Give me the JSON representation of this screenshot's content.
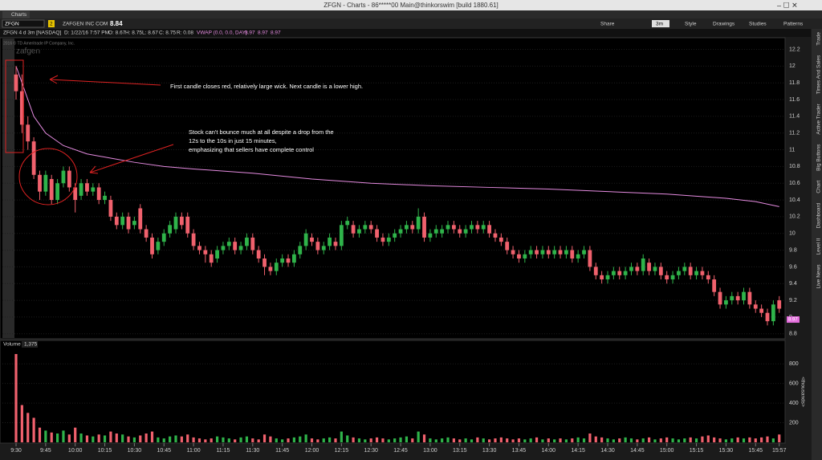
{
  "window_title": "ZFGN - Charts - 86*****00 Main@thinkorswim [build 1880.61]",
  "tab": "Charts",
  "toolbar": {
    "symbol": "ZFGN",
    "link": "2",
    "company": "ZAFGEN INC COM",
    "last": "8.84",
    "share": "Share",
    "timeframe": "3m",
    "style": "Style",
    "drawings": "Drawings",
    "studies": "Studies",
    "patterns": "Patterns"
  },
  "info": {
    "instrument": "ZFGN 4 d 3m [NASDAQ]",
    "date": "D: 1/22/16 7:57 PM",
    "open": "O: 8.67",
    "high": "H: 8.75",
    "low": "L: 8.67",
    "close": "C: 8.75",
    "range": "R: 0.08",
    "study": "VWAP (0.0, 0.0, DAY)",
    "study_values": [
      "8.97",
      "8.97",
      "8.97"
    ]
  },
  "watermark": {
    "copyright": "2016 © TD Ameritrade IP Company, Inc.",
    "logo": "zafgen"
  },
  "side_tabs": [
    "Trade",
    "Times And Sales",
    "Active Trader",
    "Big Buttons",
    "Chart",
    "Dashboard",
    "Level II",
    "Live News"
  ],
  "annotations": [
    "First candle closes red, relatively large wick.  Next candle is a lower high.",
    "Stock can't bounce much at all despite a drop from the",
    "12s to the 10s in just 15 minutes,",
    "emphasizing that sellers have complete control"
  ],
  "chart_data": {
    "type": "candlestick",
    "up_color": "#2fb34a",
    "down_color": "#f0616d",
    "vwap_color": "#e58be0",
    "ylim": [
      8.74,
      12.33
    ],
    "yticks": [
      8.8,
      9,
      9.2,
      9.4,
      9.6,
      9.8,
      10,
      10.2,
      10.4,
      10.6,
      10.8,
      11,
      11.2,
      11.4,
      11.6,
      11.8,
      12,
      12.2
    ],
    "last_label": 8.97,
    "candles": [
      [
        11.9,
        12.0,
        11.6,
        11.7
      ],
      [
        11.7,
        11.9,
        11.2,
        11.3
      ],
      [
        11.3,
        11.4,
        11.0,
        11.1
      ],
      [
        11.1,
        11.15,
        10.65,
        10.7
      ],
      [
        10.7,
        10.75,
        10.4,
        10.5
      ],
      [
        10.5,
        10.75,
        10.45,
        10.7
      ],
      [
        10.65,
        10.7,
        10.35,
        10.4
      ],
      [
        10.4,
        10.65,
        10.35,
        10.6
      ],
      [
        10.6,
        10.8,
        10.55,
        10.75
      ],
      [
        10.75,
        10.8,
        10.5,
        10.55
      ],
      [
        10.55,
        10.6,
        10.25,
        10.4
      ],
      [
        10.45,
        10.65,
        10.4,
        10.6
      ],
      [
        10.6,
        10.65,
        10.45,
        10.5
      ],
      [
        10.5,
        10.6,
        10.45,
        10.55
      ],
      [
        10.55,
        10.6,
        10.35,
        10.4
      ],
      [
        10.4,
        10.5,
        10.35,
        10.45
      ],
      [
        10.4,
        10.45,
        10.15,
        10.2
      ],
      [
        10.2,
        10.25,
        10.05,
        10.1
      ],
      [
        10.1,
        10.25,
        10.05,
        10.2
      ],
      [
        10.2,
        10.25,
        10.0,
        10.05
      ],
      [
        10.1,
        10.2,
        10.05,
        10.15
      ],
      [
        10.3,
        10.35,
        10.0,
        10.05
      ],
      [
        10.05,
        10.1,
        9.9,
        9.95
      ],
      [
        9.95,
        10.0,
        9.7,
        9.75
      ],
      [
        9.8,
        9.95,
        9.75,
        9.9
      ],
      [
        9.9,
        10.05,
        9.85,
        10.0
      ],
      [
        10.0,
        10.15,
        9.95,
        10.1
      ],
      [
        10.05,
        10.25,
        10.0,
        10.2
      ],
      [
        10.2,
        10.25,
        10.05,
        10.1
      ],
      [
        10.2,
        10.25,
        9.95,
        10.0
      ],
      [
        10.0,
        10.05,
        9.8,
        9.85
      ],
      [
        9.85,
        9.9,
        9.75,
        9.8
      ],
      [
        9.8,
        9.85,
        9.65,
        9.75
      ],
      [
        9.75,
        9.8,
        9.6,
        9.65
      ],
      [
        9.7,
        9.85,
        9.65,
        9.8
      ],
      [
        9.8,
        9.9,
        9.75,
        9.85
      ],
      [
        9.85,
        9.95,
        9.8,
        9.9
      ],
      [
        9.9,
        9.95,
        9.75,
        9.8
      ],
      [
        9.8,
        9.9,
        9.75,
        9.85
      ],
      [
        9.85,
        10.0,
        9.8,
        9.95
      ],
      [
        9.95,
        10.0,
        9.75,
        9.8
      ],
      [
        9.8,
        9.85,
        9.65,
        9.7
      ],
      [
        9.7,
        9.75,
        9.5,
        9.6
      ],
      [
        9.6,
        9.65,
        9.5,
        9.55
      ],
      [
        9.55,
        9.7,
        9.5,
        9.65
      ],
      [
        9.65,
        9.75,
        9.6,
        9.7
      ],
      [
        9.7,
        9.75,
        9.6,
        9.65
      ],
      [
        9.65,
        9.8,
        9.6,
        9.75
      ],
      [
        9.75,
        9.9,
        9.7,
        9.85
      ],
      [
        9.85,
        10.05,
        9.8,
        10.0
      ],
      [
        9.95,
        10.0,
        9.85,
        9.9
      ],
      [
        9.9,
        9.95,
        9.75,
        9.8
      ],
      [
        9.8,
        9.9,
        9.75,
        9.85
      ],
      [
        9.85,
        10.0,
        9.8,
        9.95
      ],
      [
        9.9,
        9.95,
        9.8,
        9.85
      ],
      [
        9.85,
        10.15,
        9.8,
        10.1
      ],
      [
        10.1,
        10.2,
        10.05,
        10.15
      ],
      [
        10.1,
        10.15,
        9.95,
        10.0
      ],
      [
        10.0,
        10.1,
        9.95,
        10.05
      ],
      [
        10.05,
        10.15,
        10.0,
        10.1
      ],
      [
        10.1,
        10.15,
        10.0,
        10.05
      ],
      [
        10.05,
        10.1,
        9.9,
        9.95
      ],
      [
        9.95,
        10.0,
        9.85,
        9.9
      ],
      [
        9.9,
        10.0,
        9.85,
        9.95
      ],
      [
        9.95,
        10.05,
        9.9,
        10.0
      ],
      [
        10.0,
        10.1,
        9.95,
        10.05
      ],
      [
        10.05,
        10.15,
        10.0,
        10.1
      ],
      [
        10.1,
        10.15,
        10.0,
        10.05
      ],
      [
        10.05,
        10.3,
        10.0,
        10.2
      ],
      [
        10.2,
        10.25,
        9.9,
        9.95
      ],
      [
        9.95,
        10.05,
        9.9,
        10.0
      ],
      [
        10.0,
        10.1,
        9.95,
        10.05
      ],
      [
        10.0,
        10.1,
        9.95,
        10.05
      ],
      [
        10.05,
        10.15,
        10.0,
        10.1
      ],
      [
        10.1,
        10.15,
        10.0,
        10.05
      ],
      [
        10.05,
        10.1,
        9.95,
        10.0
      ],
      [
        10.0,
        10.1,
        9.95,
        10.05
      ],
      [
        10.05,
        10.15,
        10.0,
        10.1
      ],
      [
        10.1,
        10.15,
        10.0,
        10.05
      ],
      [
        10.05,
        10.15,
        10.0,
        10.1
      ],
      [
        10.1,
        10.15,
        9.95,
        10.0
      ],
      [
        10.0,
        10.05,
        9.9,
        9.95
      ],
      [
        9.95,
        10.0,
        9.85,
        9.9
      ],
      [
        9.9,
        9.95,
        9.75,
        9.8
      ],
      [
        9.8,
        9.85,
        9.7,
        9.75
      ],
      [
        9.75,
        9.8,
        9.65,
        9.7
      ],
      [
        9.7,
        9.8,
        9.65,
        9.75
      ],
      [
        9.75,
        9.85,
        9.7,
        9.8
      ],
      [
        9.8,
        9.85,
        9.7,
        9.75
      ],
      [
        9.75,
        9.85,
        9.7,
        9.8
      ],
      [
        9.8,
        9.85,
        9.7,
        9.75
      ],
      [
        9.75,
        9.85,
        9.7,
        9.8
      ],
      [
        9.8,
        9.85,
        9.7,
        9.75
      ],
      [
        9.75,
        9.85,
        9.7,
        9.8
      ],
      [
        9.8,
        9.85,
        9.65,
        9.7
      ],
      [
        9.7,
        9.8,
        9.65,
        9.75
      ],
      [
        9.75,
        9.85,
        9.7,
        9.8
      ],
      [
        9.8,
        9.85,
        9.55,
        9.6
      ],
      [
        9.6,
        9.65,
        9.45,
        9.5
      ],
      [
        9.5,
        9.55,
        9.4,
        9.45
      ],
      [
        9.45,
        9.55,
        9.4,
        9.5
      ],
      [
        9.5,
        9.6,
        9.45,
        9.55
      ],
      [
        9.55,
        9.6,
        9.45,
        9.5
      ],
      [
        9.5,
        9.6,
        9.45,
        9.55
      ],
      [
        9.55,
        9.65,
        9.5,
        9.6
      ],
      [
        9.6,
        9.65,
        9.5,
        9.55
      ],
      [
        9.55,
        9.75,
        9.5,
        9.7
      ],
      [
        9.65,
        9.7,
        9.5,
        9.55
      ],
      [
        9.55,
        9.65,
        9.5,
        9.6
      ],
      [
        9.6,
        9.65,
        9.45,
        9.5
      ],
      [
        9.5,
        9.55,
        9.4,
        9.45
      ],
      [
        9.45,
        9.55,
        9.4,
        9.5
      ],
      [
        9.5,
        9.6,
        9.45,
        9.55
      ],
      [
        9.55,
        9.65,
        9.5,
        9.6
      ],
      [
        9.6,
        9.65,
        9.45,
        9.5
      ],
      [
        9.5,
        9.6,
        9.45,
        9.55
      ],
      [
        9.55,
        9.6,
        9.45,
        9.5
      ],
      [
        9.5,
        9.55,
        9.4,
        9.45
      ],
      [
        9.45,
        9.5,
        9.25,
        9.3
      ],
      [
        9.3,
        9.35,
        9.1,
        9.15
      ],
      [
        9.15,
        9.25,
        9.1,
        9.2
      ],
      [
        9.2,
        9.3,
        9.15,
        9.25
      ],
      [
        9.25,
        9.3,
        9.15,
        9.2
      ],
      [
        9.2,
        9.35,
        9.15,
        9.3
      ],
      [
        9.3,
        9.35,
        9.1,
        9.15
      ],
      [
        9.15,
        9.2,
        9.05,
        9.1
      ],
      [
        9.1,
        9.15,
        9.0,
        9.05
      ],
      [
        9.05,
        9.1,
        8.9,
        8.95
      ],
      [
        8.95,
        9.2,
        8.9,
        9.15
      ],
      [
        9.2,
        9.25,
        9.05,
        9.1
      ]
    ],
    "vwap": {
      "name": "VWAP",
      "x": [
        0,
        1,
        2,
        3,
        5,
        8,
        12,
        16,
        20,
        25,
        30,
        40,
        50,
        60,
        70,
        80,
        90,
        100,
        110,
        120,
        125,
        129
      ],
      "values": [
        12.0,
        11.8,
        11.6,
        11.4,
        11.2,
        11.05,
        10.95,
        10.9,
        10.85,
        10.8,
        10.77,
        10.72,
        10.65,
        10.6,
        10.57,
        10.55,
        10.53,
        10.5,
        10.47,
        10.42,
        10.38,
        10.32
      ]
    },
    "volume": {
      "title": "Volume",
      "current": "1,375",
      "unit": "<thousands>",
      "ylim": [
        0,
        990
      ],
      "yticks": [
        200,
        400,
        600,
        800
      ],
      "values": [
        900,
        380,
        300,
        250,
        150,
        120,
        100,
        90,
        120,
        80,
        150,
        90,
        70,
        60,
        80,
        70,
        110,
        90,
        80,
        60,
        50,
        70,
        90,
        110,
        50,
        40,
        60,
        70,
        60,
        80,
        50,
        40,
        30,
        40,
        60,
        50,
        40,
        30,
        50,
        60,
        40,
        30,
        80,
        60,
        40,
        30,
        40,
        50,
        60,
        80,
        40,
        30,
        40,
        50,
        40,
        110,
        70,
        50,
        40,
        30,
        40,
        50,
        40,
        30,
        40,
        50,
        60,
        40,
        110,
        80,
        40,
        30,
        40,
        50,
        40,
        30,
        40,
        30,
        50,
        40,
        30,
        40,
        50,
        40,
        30,
        40,
        30,
        40,
        50,
        30,
        40,
        30,
        40,
        30,
        40,
        50,
        40,
        90,
        60,
        50,
        40,
        30,
        40,
        50,
        40,
        30,
        40,
        50,
        30,
        40,
        50,
        40,
        30,
        40,
        50,
        40,
        60,
        70,
        50,
        40,
        30,
        40,
        50,
        40,
        50,
        40,
        50,
        60,
        40,
        80
      ]
    },
    "xticks": [
      {
        "value": 0,
        "label": "9:30"
      },
      {
        "value": 5,
        "label": "9:45"
      },
      {
        "value": 10,
        "label": "10:00"
      },
      {
        "value": 15,
        "label": "10:15"
      },
      {
        "value": 20,
        "label": "10:30"
      },
      {
        "value": 25,
        "label": "10:45"
      },
      {
        "value": 30,
        "label": "11:00"
      },
      {
        "value": 35,
        "label": "11:15"
      },
      {
        "value": 40,
        "label": "11:30"
      },
      {
        "value": 45,
        "label": "11:45"
      },
      {
        "value": 50,
        "label": "12:00"
      },
      {
        "value": 55,
        "label": "12:15"
      },
      {
        "value": 60,
        "label": "12:30"
      },
      {
        "value": 65,
        "label": "12:45"
      },
      {
        "value": 70,
        "label": "13:00"
      },
      {
        "value": 75,
        "label": "13:15"
      },
      {
        "value": 80,
        "label": "13:30"
      },
      {
        "value": 85,
        "label": "13:45"
      },
      {
        "value": 90,
        "label": "14:00"
      },
      {
        "value": 95,
        "label": "14:15"
      },
      {
        "value": 100,
        "label": "14:30"
      },
      {
        "value": 105,
        "label": "14:45"
      },
      {
        "value": 110,
        "label": "15:00"
      },
      {
        "value": 115,
        "label": "15:15"
      },
      {
        "value": 120,
        "label": "15:30"
      },
      {
        "value": 125,
        "label": "15:45"
      },
      {
        "value": 129,
        "label": "15:57"
      }
    ]
  }
}
